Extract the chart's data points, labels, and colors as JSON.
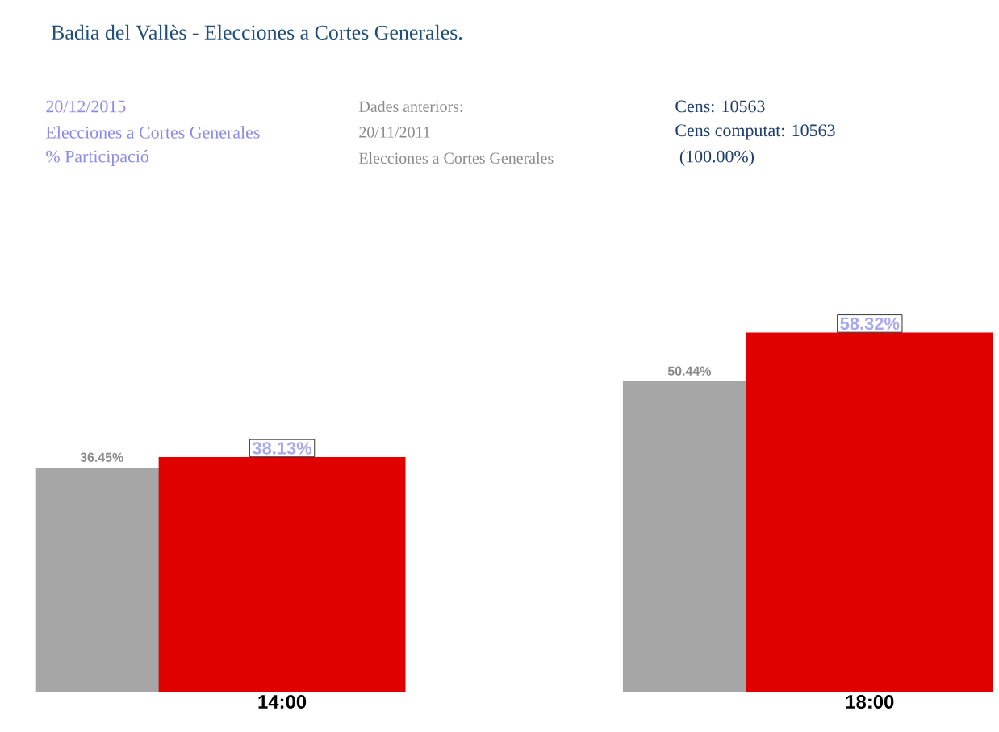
{
  "chart_data": {
    "type": "bar",
    "title": "Badia del Vallès - Elecciones a Cortes Generales.",
    "annotations": [
      "20/12/2015",
      "Elecciones a Cortes Generales",
      "% Participació",
      "Dades anteriors:",
      "20/11/2011",
      "Elecciones a Cortes Generales",
      "Cens: 10563",
      "Cens computat: 10563",
      " (100.00%)"
    ],
    "categories": [
      "14:00",
      "18:00"
    ],
    "series": [
      {
        "color": "#a6a6a6",
        "values": [
          36.45,
          50.44
        ],
        "value_labels": [
          "36.45%",
          "50.44%"
        ]
      },
      {
        "color": "#e00000",
        "values": [
          38.13,
          58.32
        ],
        "value_labels": [
          "38.13%",
          "58.32%"
        ]
      }
    ]
  }
}
